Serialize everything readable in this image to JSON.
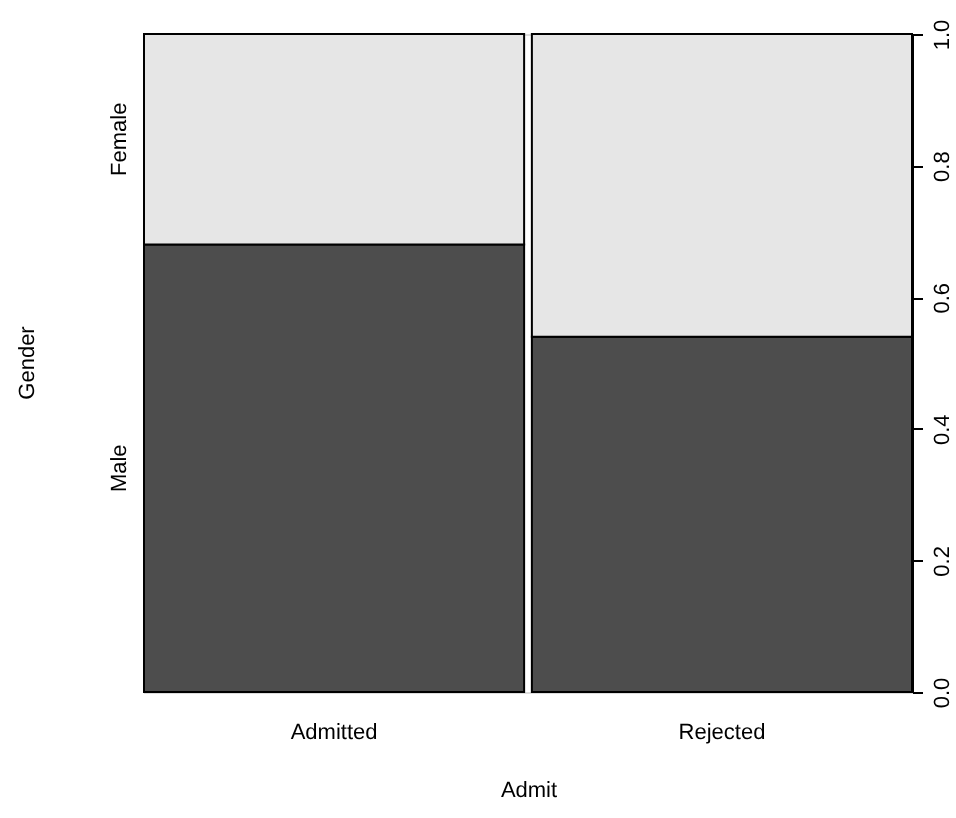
{
  "chart_data": {
    "type": "bar",
    "stacked": true,
    "xlabel": "Admit",
    "ylabel": "Gender",
    "categories": [
      "Admitted",
      "Rejected"
    ],
    "series": [
      {
        "name": "Male",
        "color": "#4d4d4d",
        "values": [
          0.68,
          0.54
        ]
      },
      {
        "name": "Female",
        "color": "#e6e6e6",
        "values": [
          0.32,
          0.46
        ]
      }
    ],
    "ylim": [
      0,
      1
    ],
    "yticks": [
      {
        "value": 0,
        "label": "0.0"
      },
      {
        "value": 0.2,
        "label": "0.2"
      },
      {
        "value": 0.4,
        "label": "0.4"
      },
      {
        "value": 0.6,
        "label": "0.6"
      },
      {
        "value": 0.8,
        "label": "0.8"
      },
      {
        "value": 1,
        "label": "1.0"
      }
    ],
    "grid": false
  }
}
